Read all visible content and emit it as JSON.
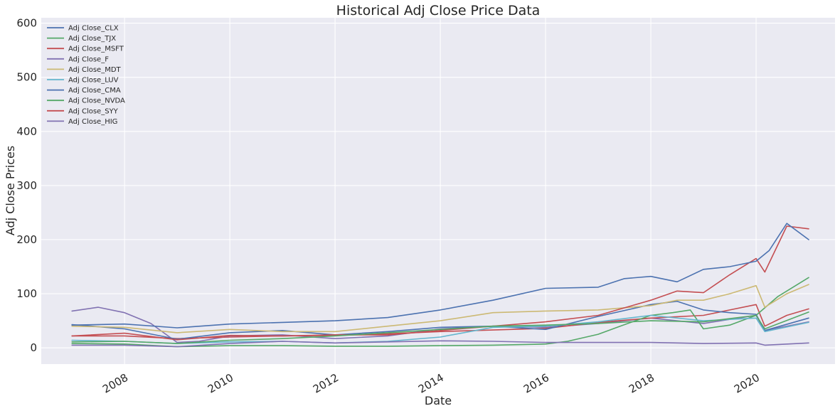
{
  "chart_data": {
    "type": "line",
    "title": "Historical Adj Close Price Data",
    "xlabel": "Date",
    "ylabel": "Adj Close Prices",
    "xlim": [
      "2006-06-01",
      "2021-07-01"
    ],
    "ylim": [
      -30,
      610
    ],
    "grid": true,
    "legend_position": "top-left",
    "x_ticks": [
      "2008",
      "2010",
      "2012",
      "2014",
      "2016",
      "2018",
      "2020"
    ],
    "y_ticks": [
      "0",
      "100",
      "200",
      "300",
      "400",
      "500",
      "600"
    ],
    "series": [
      {
        "name": "Adj Close_CLX",
        "color": "#4c72b0",
        "points": [
          [
            "2007-01",
            42
          ],
          [
            "2008-01",
            44
          ],
          [
            "2009-01",
            37
          ],
          [
            "2010-01",
            44
          ],
          [
            "2011-01",
            47
          ],
          [
            "2012-01",
            50
          ],
          [
            "2013-01",
            56
          ],
          [
            "2014-01",
            70
          ],
          [
            "2015-01",
            88
          ],
          [
            "2016-01",
            110
          ],
          [
            "2017-01",
            112
          ],
          [
            "2017-07",
            128
          ],
          [
            "2018-01",
            132
          ],
          [
            "2018-07",
            122
          ],
          [
            "2019-01",
            145
          ],
          [
            "2019-07",
            150
          ],
          [
            "2020-01",
            160
          ],
          [
            "2020-04",
            180
          ],
          [
            "2020-08",
            230
          ],
          [
            "2021-01",
            200
          ]
        ]
      },
      {
        "name": "Adj Close_TJX",
        "color": "#55a868",
        "points": [
          [
            "2007-01",
            11
          ],
          [
            "2008-01",
            12
          ],
          [
            "2009-01",
            8
          ],
          [
            "2010-01",
            14
          ],
          [
            "2011-01",
            17
          ],
          [
            "2012-01",
            22
          ],
          [
            "2013-01",
            28
          ],
          [
            "2014-01",
            34
          ],
          [
            "2015-01",
            40
          ],
          [
            "2016-01",
            42
          ],
          [
            "2017-01",
            45
          ],
          [
            "2018-01",
            50
          ],
          [
            "2019-01",
            48
          ],
          [
            "2020-01",
            60
          ],
          [
            "2020-03",
            35
          ],
          [
            "2021-01",
            66
          ]
        ]
      },
      {
        "name": "Adj Close_MSFT",
        "color": "#c44e52",
        "points": [
          [
            "2007-01",
            22
          ],
          [
            "2008-01",
            27
          ],
          [
            "2009-01",
            15
          ],
          [
            "2010-01",
            23
          ],
          [
            "2011-01",
            22
          ],
          [
            "2012-01",
            24
          ],
          [
            "2013-01",
            24
          ],
          [
            "2014-01",
            32
          ],
          [
            "2015-01",
            40
          ],
          [
            "2016-01",
            48
          ],
          [
            "2017-01",
            60
          ],
          [
            "2018-01",
            88
          ],
          [
            "2018-07",
            105
          ],
          [
            "2019-01",
            102
          ],
          [
            "2019-07",
            135
          ],
          [
            "2020-01",
            165
          ],
          [
            "2020-03",
            140
          ],
          [
            "2020-08",
            225
          ],
          [
            "2021-01",
            220
          ]
        ]
      },
      {
        "name": "Adj Close_F",
        "color": "#8172b2",
        "points": [
          [
            "2007-01",
            5
          ],
          [
            "2008-01",
            5
          ],
          [
            "2009-01",
            2
          ],
          [
            "2010-01",
            8
          ],
          [
            "2011-01",
            12
          ],
          [
            "2012-01",
            9
          ],
          [
            "2013-01",
            11
          ],
          [
            "2014-01",
            13
          ],
          [
            "2015-01",
            12
          ],
          [
            "2016-01",
            10
          ],
          [
            "2017-01",
            10
          ],
          [
            "2018-01",
            10
          ],
          [
            "2019-01",
            8
          ],
          [
            "2020-01",
            9
          ],
          [
            "2020-03",
            5
          ],
          [
            "2021-01",
            9
          ]
        ]
      },
      {
        "name": "Adj Close_MDT",
        "color": "#ccb974",
        "points": [
          [
            "2007-01",
            40
          ],
          [
            "2008-01",
            38
          ],
          [
            "2009-01",
            28
          ],
          [
            "2010-01",
            34
          ],
          [
            "2011-01",
            30
          ],
          [
            "2012-01",
            30
          ],
          [
            "2013-01",
            40
          ],
          [
            "2014-01",
            50
          ],
          [
            "2015-01",
            65
          ],
          [
            "2016-01",
            68
          ],
          [
            "2017-01",
            70
          ],
          [
            "2018-01",
            78
          ],
          [
            "2018-07",
            88
          ],
          [
            "2019-01",
            88
          ],
          [
            "2019-07",
            100
          ],
          [
            "2020-01",
            115
          ],
          [
            "2020-03",
            75
          ],
          [
            "2020-08",
            100
          ],
          [
            "2021-01",
            117
          ]
        ]
      },
      {
        "name": "Adj Close_LUV",
        "color": "#64b5cd",
        "points": [
          [
            "2007-01",
            14
          ],
          [
            "2008-01",
            12
          ],
          [
            "2009-01",
            8
          ],
          [
            "2010-01",
            11
          ],
          [
            "2011-01",
            12
          ],
          [
            "2012-01",
            9
          ],
          [
            "2013-01",
            12
          ],
          [
            "2014-01",
            20
          ],
          [
            "2015-01",
            38
          ],
          [
            "2016-01",
            40
          ],
          [
            "2017-01",
            48
          ],
          [
            "2018-01",
            60
          ],
          [
            "2019-01",
            50
          ],
          [
            "2020-01",
            55
          ],
          [
            "2020-03",
            30
          ],
          [
            "2021-01",
            47
          ]
        ]
      },
      {
        "name": "Adj Close_CMA",
        "color": "#4c72b0",
        "points": [
          [
            "2007-01",
            43
          ],
          [
            "2008-01",
            35
          ],
          [
            "2009-01",
            16
          ],
          [
            "2010-01",
            28
          ],
          [
            "2011-01",
            32
          ],
          [
            "2012-01",
            24
          ],
          [
            "2013-01",
            30
          ],
          [
            "2014-01",
            38
          ],
          [
            "2015-01",
            40
          ],
          [
            "2016-01",
            34
          ],
          [
            "2017-01",
            58
          ],
          [
            "2018-01",
            80
          ],
          [
            "2018-07",
            86
          ],
          [
            "2019-01",
            70
          ],
          [
            "2019-07",
            65
          ],
          [
            "2020-01",
            62
          ],
          [
            "2020-03",
            32
          ],
          [
            "2021-01",
            55
          ]
        ]
      },
      {
        "name": "Adj Close_NVDA",
        "color": "#55a868",
        "points": [
          [
            "2007-01",
            8
          ],
          [
            "2008-01",
            7
          ],
          [
            "2009-01",
            2
          ],
          [
            "2010-01",
            4
          ],
          [
            "2011-01",
            4
          ],
          [
            "2012-01",
            3
          ],
          [
            "2013-01",
            3
          ],
          [
            "2014-01",
            4
          ],
          [
            "2015-01",
            5
          ],
          [
            "2016-01",
            7
          ],
          [
            "2016-06",
            12
          ],
          [
            "2017-01",
            25
          ],
          [
            "2017-06",
            40
          ],
          [
            "2018-01",
            60
          ],
          [
            "2018-06",
            65
          ],
          [
            "2018-10",
            70
          ],
          [
            "2019-01",
            35
          ],
          [
            "2019-07",
            42
          ],
          [
            "2020-01",
            60
          ],
          [
            "2020-06",
            95
          ],
          [
            "2021-01",
            130
          ]
        ]
      },
      {
        "name": "Adj Close_SYY",
        "color": "#c44e52",
        "points": [
          [
            "2007-01",
            22
          ],
          [
            "2008-01",
            22
          ],
          [
            "2009-01",
            17
          ],
          [
            "2010-01",
            20
          ],
          [
            "2011-01",
            22
          ],
          [
            "2012-01",
            23
          ],
          [
            "2013-01",
            26
          ],
          [
            "2014-01",
            30
          ],
          [
            "2015-01",
            33
          ],
          [
            "2016-01",
            36
          ],
          [
            "2017-01",
            47
          ],
          [
            "2018-01",
            55
          ],
          [
            "2019-01",
            60
          ],
          [
            "2019-07",
            70
          ],
          [
            "2020-01",
            80
          ],
          [
            "2020-03",
            40
          ],
          [
            "2020-08",
            60
          ],
          [
            "2021-01",
            72
          ]
        ]
      },
      {
        "name": "Adj Close_HIG",
        "color": "#8172b2",
        "points": [
          [
            "2007-01",
            68
          ],
          [
            "2007-07",
            75
          ],
          [
            "2008-01",
            65
          ],
          [
            "2008-07",
            45
          ],
          [
            "2009-01",
            10
          ],
          [
            "2009-06",
            12
          ],
          [
            "2010-01",
            22
          ],
          [
            "2011-01",
            24
          ],
          [
            "2012-01",
            17
          ],
          [
            "2013-01",
            22
          ],
          [
            "2014-01",
            35
          ],
          [
            "2015-01",
            40
          ],
          [
            "2016-01",
            38
          ],
          [
            "2017-01",
            45
          ],
          [
            "2018-01",
            55
          ],
          [
            "2019-01",
            45
          ],
          [
            "2020-01",
            60
          ],
          [
            "2020-03",
            32
          ],
          [
            "2021-01",
            48
          ]
        ]
      }
    ]
  }
}
